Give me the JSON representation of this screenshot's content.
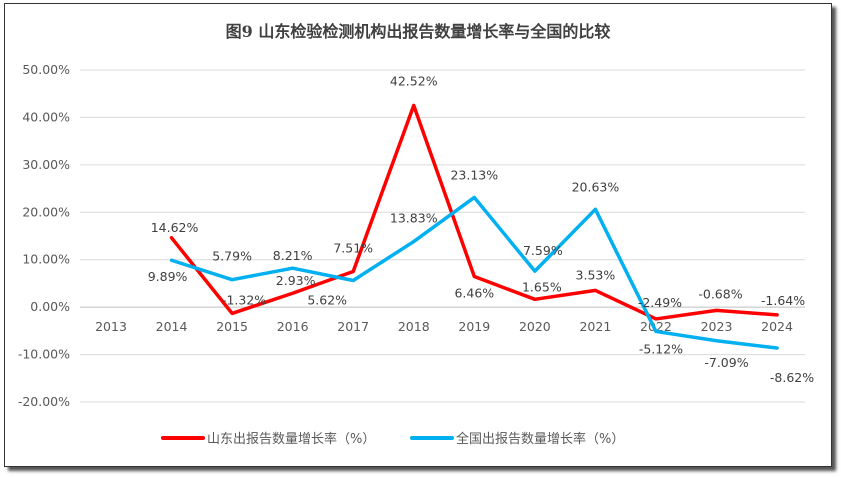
{
  "chart_data": {
    "type": "line",
    "title": "图9   山东检验检测机构出报告数量增长率与全国的比较",
    "categories": [
      "2013",
      "2014",
      "2015",
      "2016",
      "2017",
      "2018",
      "2019",
      "2020",
      "2021",
      "2022",
      "2023",
      "2024"
    ],
    "ylim": [
      -20,
      50
    ],
    "yticks": [
      "50.00%",
      "40.00%",
      "30.00%",
      "20.00%",
      "10.00%",
      "0.00%",
      "-10.00%",
      "-20.00%"
    ],
    "grid": true,
    "legend_position": "bottom",
    "series": [
      {
        "name": "山东出报告数量增长率（%）",
        "color": "#ff0000",
        "values": [
          null,
          14.62,
          -1.32,
          2.93,
          7.51,
          42.52,
          6.46,
          1.65,
          3.53,
          -2.49,
          -0.68,
          -1.64
        ],
        "labels": [
          "",
          "14.62%",
          "-1.32%",
          "2.93%",
          "7.51%",
          "42.52%",
          "6.46%",
          "1.65%",
          "3.53%",
          "-2.49%",
          "-0.68%",
          "-1.64%"
        ]
      },
      {
        "name": "全国出报告数量增长率（%）",
        "color": "#00b0f0",
        "values": [
          null,
          9.89,
          5.79,
          8.21,
          5.62,
          13.83,
          23.13,
          7.59,
          20.63,
          -5.12,
          -7.09,
          -8.62
        ],
        "labels": [
          "",
          "9.89%",
          "5.79%",
          "8.21%",
          "5.62%",
          "13.83%",
          "23.13%",
          "7.59%",
          "20.63%",
          "-5.12%",
          "-7.09%",
          "-8.62%"
        ]
      }
    ]
  }
}
